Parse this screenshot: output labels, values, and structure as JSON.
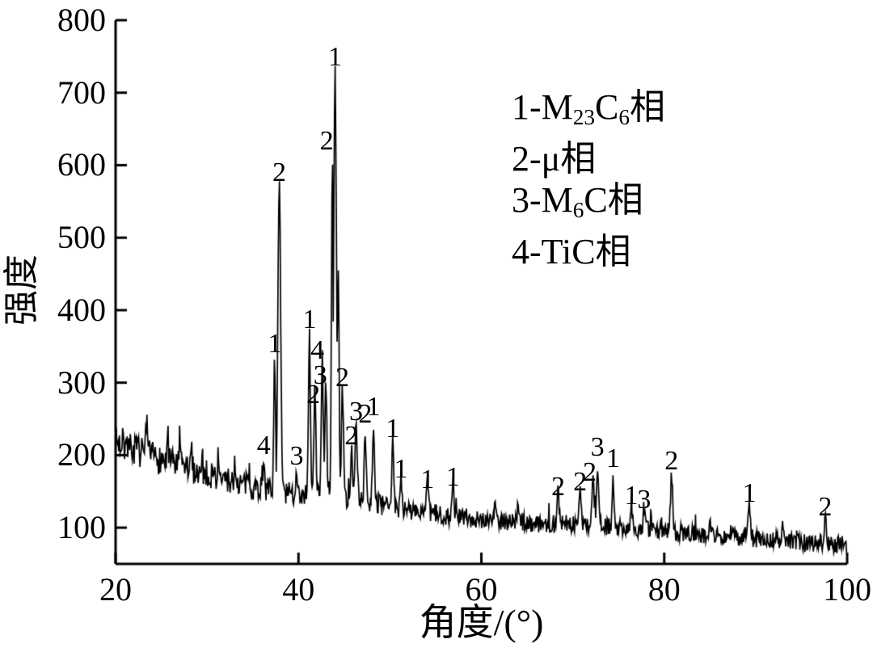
{
  "figure": {
    "background": "#ffffff",
    "ink_color": "#000000"
  },
  "chart_data": {
    "type": "line",
    "title": "",
    "xlabel": "角度/(°)",
    "ylabel": "强度",
    "xlim": [
      20,
      100
    ],
    "ylim": [
      50,
      800
    ],
    "x_ticks": [
      20,
      40,
      60,
      80,
      100
    ],
    "y_ticks": [
      100,
      200,
      300,
      400,
      500,
      600,
      700,
      800
    ],
    "grid": false,
    "line_color": "#000000",
    "legend": {
      "position": "inside-upper-right",
      "entries": [
        {
          "parts": [
            {
              "t": "1-M"
            },
            {
              "t": "23",
              "sub": true
            },
            {
              "t": "C"
            },
            {
              "t": "6",
              "sub": true
            },
            {
              "t": "相"
            }
          ]
        },
        {
          "parts": [
            {
              "t": "2-μ相"
            }
          ]
        },
        {
          "parts": [
            {
              "t": "3-M"
            },
            {
              "t": "6",
              "sub": true
            },
            {
              "t": "C相"
            }
          ]
        },
        {
          "parts": [
            {
              "t": "4-TiC相"
            }
          ]
        }
      ]
    },
    "baseline_points": [
      [
        20,
        218
      ],
      [
        22,
        208
      ],
      [
        24,
        198
      ],
      [
        26,
        190
      ],
      [
        28,
        182
      ],
      [
        30,
        174
      ],
      [
        32,
        166
      ],
      [
        34,
        160
      ],
      [
        36,
        154
      ],
      [
        38,
        148
      ],
      [
        40,
        145
      ],
      [
        42,
        148
      ],
      [
        44,
        150
      ],
      [
        45,
        140
      ],
      [
        46,
        138
      ],
      [
        48,
        133
      ],
      [
        50,
        128
      ],
      [
        52,
        124
      ],
      [
        54,
        121
      ],
      [
        56,
        117
      ],
      [
        58,
        114
      ],
      [
        60,
        112
      ],
      [
        62,
        110
      ],
      [
        64,
        108
      ],
      [
        66,
        106
      ],
      [
        68,
        105
      ],
      [
        70,
        104
      ],
      [
        72,
        103
      ],
      [
        74,
        101
      ],
      [
        76,
        99
      ],
      [
        78,
        97
      ],
      [
        80,
        95
      ],
      [
        82,
        93
      ],
      [
        84,
        91
      ],
      [
        86,
        89
      ],
      [
        88,
        87
      ],
      [
        90,
        85
      ],
      [
        92,
        83
      ],
      [
        94,
        81
      ],
      [
        96,
        79
      ],
      [
        98,
        78
      ],
      [
        100,
        77
      ]
    ],
    "noise_amplitude_points": [
      [
        20,
        22
      ],
      [
        30,
        19
      ],
      [
        40,
        16
      ],
      [
        50,
        14
      ],
      [
        60,
        13
      ],
      [
        70,
        12
      ],
      [
        80,
        12
      ],
      [
        90,
        12
      ],
      [
        100,
        13
      ]
    ],
    "noise_seed": 7,
    "peaks": [
      {
        "angle": 20.8,
        "intensity": 258,
        "label": "",
        "w": 0.05
      },
      {
        "angle": 23.4,
        "intensity": 242,
        "label": "",
        "w": 0.05
      },
      {
        "angle": 25.7,
        "intensity": 236,
        "label": "",
        "w": 0.05
      },
      {
        "angle": 27.0,
        "intensity": 232,
        "label": "",
        "w": 0.05
      },
      {
        "angle": 28.3,
        "intensity": 218,
        "label": "",
        "w": 0.05
      },
      {
        "angle": 29.5,
        "intensity": 205,
        "label": "",
        "w": 0.04
      },
      {
        "angle": 31.2,
        "intensity": 200,
        "label": "",
        "w": 0.04
      },
      {
        "angle": 33.0,
        "intensity": 196,
        "label": "",
        "w": 0.04
      },
      {
        "angle": 34.6,
        "intensity": 190,
        "label": "",
        "w": 0.04
      },
      {
        "angle": 36.2,
        "intensity": 192,
        "label": "4",
        "w": 0.09
      },
      {
        "angle": 37.4,
        "intensity": 332,
        "label": "1",
        "w": 0.1
      },
      {
        "angle": 37.9,
        "intensity": 568,
        "label": "2",
        "w": 0.15
      },
      {
        "angle": 39.8,
        "intensity": 186,
        "label": "3",
        "w": 0.09,
        "dy": 8
      },
      {
        "angle": 41.2,
        "intensity": 365,
        "label": "1",
        "w": 0.1
      },
      {
        "angle": 41.8,
        "intensity": 288,
        "label": "2",
        "w": 0.11,
        "dx": -2,
        "dy": 24
      },
      {
        "angle": 42.6,
        "intensity": 332,
        "label": "4",
        "w": 0.11,
        "dx": -6,
        "dy": 8
      },
      {
        "angle": 43.0,
        "intensity": 302,
        "label": "3",
        "w": 0.1,
        "dx": -7,
        "dy": 12
      },
      {
        "angle": 43.7,
        "intensity": 612,
        "label": "2",
        "w": 0.09,
        "dx": -7
      },
      {
        "angle": 44.0,
        "intensity": 728,
        "label": "1",
        "w": 0.15
      },
      {
        "angle": 44.35,
        "intensity": 458,
        "label": "",
        "w": 0.09
      },
      {
        "angle": 44.8,
        "intensity": 300,
        "label": "2",
        "w": 0.11,
        "dy": 13
      },
      {
        "angle": 45.8,
        "intensity": 212,
        "label": "2",
        "w": 0.11,
        "dy": 6
      },
      {
        "angle": 46.3,
        "intensity": 238,
        "label": "3",
        "w": 0.11
      },
      {
        "angle": 47.3,
        "intensity": 235,
        "label": "2",
        "w": 0.11
      },
      {
        "angle": 48.2,
        "intensity": 245,
        "label": "1",
        "w": 0.11
      },
      {
        "angle": 50.3,
        "intensity": 215,
        "label": "1",
        "w": 0.11
      },
      {
        "angle": 51.2,
        "intensity": 176,
        "label": "1",
        "w": 0.1,
        "dy": 15
      },
      {
        "angle": 54.1,
        "intensity": 156,
        "label": "1",
        "w": 0.1,
        "dy": 10
      },
      {
        "angle": 56.9,
        "intensity": 158,
        "label": "1",
        "w": 0.1,
        "dy": 9
      },
      {
        "angle": 61.5,
        "intensity": 132,
        "label": "",
        "w": 0.1
      },
      {
        "angle": 64.0,
        "intensity": 128,
        "label": "",
        "w": 0.1
      },
      {
        "angle": 68.4,
        "intensity": 148,
        "label": "2",
        "w": 0.12,
        "dy": 12
      },
      {
        "angle": 70.8,
        "intensity": 152,
        "label": "2",
        "w": 0.12,
        "dy": 10
      },
      {
        "angle": 72.2,
        "intensity": 168,
        "label": "2",
        "w": 0.12,
        "dx": -4,
        "dy": 12
      },
      {
        "angle": 72.7,
        "intensity": 180,
        "label": "3",
        "w": 0.12,
        "dy": -8
      },
      {
        "angle": 74.4,
        "intensity": 174,
        "label": "1",
        "w": 0.1
      },
      {
        "angle": 76.4,
        "intensity": 136,
        "label": "1",
        "w": 0.1,
        "dy": 12
      },
      {
        "angle": 77.8,
        "intensity": 132,
        "label": "3",
        "w": 0.1,
        "dy": 14
      },
      {
        "angle": 80.8,
        "intensity": 170,
        "label": "2",
        "w": 0.12
      },
      {
        "angle": 85.0,
        "intensity": 115,
        "label": "",
        "w": 0.1
      },
      {
        "angle": 89.3,
        "intensity": 126,
        "label": "1",
        "w": 0.12
      },
      {
        "angle": 93.0,
        "intensity": 105,
        "label": "",
        "w": 0.1
      },
      {
        "angle": 97.6,
        "intensity": 116,
        "label": "2",
        "w": 0.12,
        "dy": 8
      }
    ]
  }
}
